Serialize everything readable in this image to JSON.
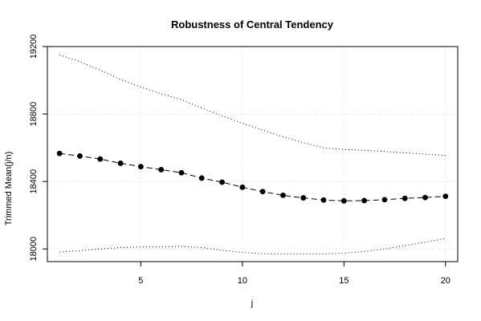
{
  "chart_data": {
    "type": "line",
    "title": "Robustness of Central Tendency",
    "xlabel": "j",
    "ylabel": "Trimmed Mean(j/n)",
    "xlim": [
      0.4,
      20.6
    ],
    "ylim": [
      17925,
      19200
    ],
    "x_ticks": [
      5,
      10,
      15,
      20
    ],
    "y_ticks": [
      18000,
      18400,
      18800,
      19200
    ],
    "grid": true,
    "x": [
      1,
      2,
      3,
      4,
      5,
      6,
      7,
      8,
      9,
      10,
      11,
      12,
      13,
      14,
      15,
      16,
      17,
      18,
      19,
      20
    ],
    "series": [
      {
        "style": "dashed-with-points",
        "color": "#000000",
        "values": [
          18566,
          18551,
          18533,
          18508,
          18488,
          18470,
          18452,
          18420,
          18396,
          18366,
          18340,
          18318,
          18303,
          18290,
          18285,
          18287,
          18292,
          18300,
          18305,
          18312
        ]
      },
      {
        "style": "dotted",
        "color": "#000000",
        "values": [
          19150,
          19110,
          19060,
          19005,
          18960,
          18920,
          18885,
          18835,
          18790,
          18745,
          18705,
          18665,
          18630,
          18600,
          18590,
          18585,
          18578,
          18570,
          18562,
          18555
        ]
      },
      {
        "style": "dotted",
        "color": "#000000",
        "values": [
          17982,
          17990,
          18000,
          18008,
          18012,
          18012,
          18015,
          18008,
          17992,
          17980,
          17972,
          17970,
          17970,
          17970,
          17975,
          17985,
          18000,
          18020,
          18040,
          18062
        ]
      }
    ]
  }
}
